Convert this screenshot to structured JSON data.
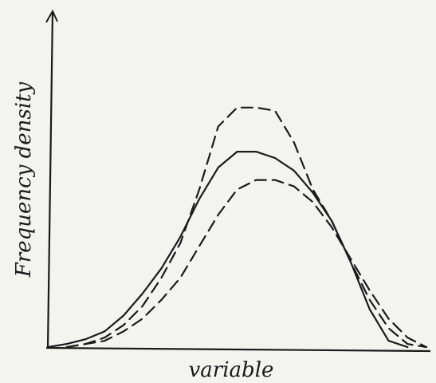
{
  "chart_data": {
    "type": "line",
    "y_label": "Frequency density",
    "x_label": "variable",
    "x": [
      0,
      5,
      10,
      15,
      20,
      25,
      30,
      35,
      40,
      45,
      50,
      55,
      60,
      65,
      70,
      75,
      80,
      85,
      90,
      95,
      100
    ],
    "series": [
      {
        "color": "#1a1a1a",
        "dashed": false,
        "values": [
          0,
          1,
          2.5,
          5,
          10,
          17,
          25,
          35,
          47,
          57,
          62,
          62,
          60,
          56,
          49,
          40,
          27,
          12,
          2,
          0,
          null
        ]
      },
      {
        "color": "#1a1a1a",
        "dashed": true,
        "values": [
          null,
          0,
          1,
          3,
          7,
          13,
          22,
          33,
          50,
          70,
          76,
          76,
          75,
          65,
          50,
          40,
          27,
          15,
          6,
          1,
          0
        ]
      },
      {
        "color": "#1a1a1a",
        "dashed": true,
        "values": [
          null,
          0,
          1,
          2,
          5,
          9,
          15,
          22,
          32,
          42,
          50,
          53,
          53,
          51,
          46,
          38,
          28,
          18,
          9,
          3,
          0
        ]
      }
    ],
    "xlim": [
      0,
      100
    ],
    "ylim": [
      0,
      100
    ]
  }
}
